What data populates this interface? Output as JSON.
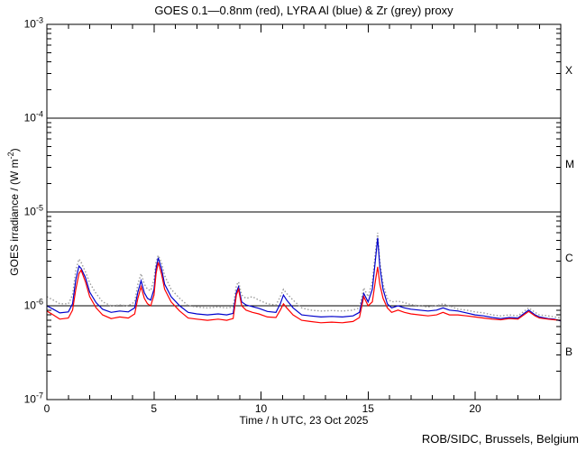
{
  "chart_data": {
    "type": "line",
    "title": "GOES 0.1—0.8nm (red), LYRA Al (blue) & Zr (grey) proxy",
    "xlabel": "Time / h UTC, 23 Oct 2025",
    "ylabel_parts": {
      "pre": "GOES irradiance / (W m",
      "exp": "-2",
      "post": ")"
    },
    "credit": "ROB/SIDC, Brussels, Belgium",
    "xlim": [
      0,
      24
    ],
    "yscale": "log",
    "ylim_exponents": [
      -7,
      -3
    ],
    "grid": false,
    "x_minor_step": 1,
    "x_major_ticks": [
      0,
      5,
      10,
      15,
      20
    ],
    "x_major_labels": [
      "0",
      "5",
      "10",
      "15",
      "20"
    ],
    "y_tick_exponents": [
      -3,
      -4,
      -5,
      -6,
      -7
    ],
    "y_tick_labels": [
      {
        "base": "10",
        "exp": "-3"
      },
      {
        "base": "10",
        "exp": "-4"
      },
      {
        "base": "10",
        "exp": "-5"
      },
      {
        "base": "10",
        "exp": "-6"
      },
      {
        "base": "10",
        "exp": "-7"
      }
    ],
    "flare_class_lines": [
      0.0001,
      1e-05,
      1e-06
    ],
    "flare_classes": [
      {
        "label": "X",
        "mid_value": 0.00032
      },
      {
        "label": "M",
        "mid_value": 3.2e-05
      },
      {
        "label": "C",
        "mid_value": 3.2e-06
      },
      {
        "label": "B",
        "mid_value": 3.2e-07
      }
    ],
    "x": [
      0,
      0.3,
      0.6,
      1.0,
      1.2,
      1.35,
      1.5,
      1.6,
      1.8,
      2.0,
      2.3,
      2.6,
      3.0,
      3.4,
      3.8,
      4.1,
      4.25,
      4.4,
      4.55,
      4.7,
      4.85,
      5.0,
      5.1,
      5.2,
      5.35,
      5.5,
      5.8,
      6.2,
      6.6,
      7.0,
      7.5,
      8.0,
      8.4,
      8.7,
      8.85,
      8.95,
      9.1,
      9.3,
      9.6,
      9.9,
      10.3,
      10.7,
      10.9,
      11.05,
      11.2,
      11.5,
      11.9,
      12.3,
      12.8,
      13.3,
      13.8,
      14.3,
      14.6,
      14.8,
      15.0,
      15.2,
      15.35,
      15.45,
      15.55,
      15.7,
      15.9,
      16.1,
      16.4,
      16.7,
      17.0,
      17.4,
      17.8,
      18.2,
      18.5,
      18.8,
      19.2,
      19.6,
      20.0,
      20.4,
      20.8,
      21.2,
      21.6,
      22.0,
      22.5,
      22.8,
      23.0,
      23.4,
      23.7,
      24.0
    ],
    "series": [
      {
        "id": "lyra-zr-proxy",
        "name": "LYRA Zr proxy",
        "color": "#9a9a9a",
        "line_style": "dotted",
        "values": [
          1.25e-06,
          1.15e-06,
          1.05e-06,
          1.05e-06,
          1.3e-06,
          2.4e-06,
          3.15e-06,
          2.9e-06,
          2.3e-06,
          1.75e-06,
          1.35e-06,
          1.1e-06,
          1e-06,
          1.02e-06,
          1e-06,
          1.1e-06,
          1.7e-06,
          2.2e-06,
          1.7e-06,
          1.5e-06,
          1.45e-06,
          1.9e-06,
          2.9e-06,
          3.45e-06,
          2.9e-06,
          2.1e-06,
          1.5e-06,
          1.2e-06,
          1e-06,
          9.7e-07,
          9.5e-07,
          9.7e-07,
          9.5e-07,
          9.7e-07,
          1.65e-06,
          1.8e-06,
          1.3e-06,
          1.2e-06,
          1.25e-06,
          1.15e-06,
          1.05e-06,
          1.02e-06,
          1.25e-06,
          1.5e-06,
          1.35e-06,
          1.15e-06,
          9.5e-07,
          9e-07,
          8.8e-07,
          8.9e-07,
          8.8e-07,
          9e-07,
          9.5e-07,
          1.55e-06,
          1.25e-06,
          1.8e-06,
          3.9e-06,
          6e-06,
          3e-06,
          1.7e-06,
          1.2e-06,
          1.1e-06,
          1.12e-06,
          1.08e-06,
          1.03e-06,
          1e-06,
          9.7e-07,
          1e-06,
          1.05e-06,
          1e-06,
          9.2e-07,
          9e-07,
          8.6e-07,
          8.4e-07,
          8e-07,
          7.8e-07,
          8e-07,
          7.8e-07,
          9.5e-07,
          8.5e-07,
          8e-07,
          7.8e-07,
          7.6e-07,
          7.4e-07
        ]
      },
      {
        "id": "lyra-al-proxy",
        "name": "LYRA Al proxy",
        "color": "#0000cc",
        "line_style": "solid",
        "values": [
          1e-06,
          9.2e-07,
          8.4e-07,
          8.6e-07,
          1.05e-06,
          1.9e-06,
          2.65e-06,
          2.5e-06,
          2e-06,
          1.4e-06,
          1.08e-06,
          9.2e-07,
          8.5e-07,
          8.8e-07,
          8.6e-07,
          9.5e-07,
          1.4e-06,
          1.85e-06,
          1.38e-06,
          1.2e-06,
          1.15e-06,
          1.5e-06,
          2.5e-06,
          3.25e-06,
          2.5e-06,
          1.7e-06,
          1.25e-06,
          1e-06,
          8.5e-07,
          8.2e-07,
          8e-07,
          8.2e-07,
          8e-07,
          8.3e-07,
          1.4e-06,
          1.6e-06,
          1.1e-06,
          1.02e-06,
          9.8e-07,
          9.4e-07,
          8.7e-07,
          8.5e-07,
          1.05e-06,
          1.3e-06,
          1.15e-06,
          9.5e-07,
          8e-07,
          7.8e-07,
          7.6e-07,
          7.7e-07,
          7.6e-07,
          7.8e-07,
          8.5e-07,
          1.35e-06,
          1.1e-06,
          1.5e-06,
          3.2e-06,
          5.3e-06,
          2.6e-06,
          1.5e-06,
          1.05e-06,
          9.5e-07,
          1e-06,
          9.5e-07,
          9.2e-07,
          9e-07,
          8.8e-07,
          9e-07,
          9.5e-07,
          9e-07,
          8.8e-07,
          8.4e-07,
          8e-07,
          7.8e-07,
          7.5e-07,
          7.3e-07,
          7.5e-07,
          7.4e-07,
          9e-07,
          8e-07,
          7.6e-07,
          7.3e-07,
          7.2e-07,
          6.9e-07
        ]
      },
      {
        "id": "goes-xray",
        "name": "GOES 0.1-0.8nm",
        "color": "#ff0000",
        "line_style": "solid",
        "values": [
          8.8e-07,
          8e-07,
          7.2e-07,
          7.4e-07,
          9e-07,
          1.5e-06,
          2.2e-06,
          2.4e-06,
          1.8e-06,
          1.25e-06,
          9.5e-07,
          8e-07,
          7.3e-07,
          7.6e-07,
          7.4e-07,
          8.2e-07,
          1.2e-06,
          1.6e-06,
          1.2e-06,
          1.05e-06,
          1e-06,
          1.3e-06,
          2.2e-06,
          2.9e-06,
          2.2e-06,
          1.5e-06,
          1.1e-06,
          8.8e-07,
          7.4e-07,
          7.2e-07,
          7e-07,
          7.2e-07,
          7e-07,
          7.3e-07,
          1.3e-06,
          1.5e-06,
          1e-06,
          9e-07,
          8.5e-07,
          8.2e-07,
          7.6e-07,
          7.5e-07,
          9e-07,
          1.05e-06,
          9.5e-07,
          8e-07,
          7e-07,
          6.8e-07,
          6.6e-07,
          6.7e-07,
          6.6e-07,
          6.8e-07,
          7.5e-07,
          1.25e-06,
          1e-06,
          1.1e-06,
          1.9e-06,
          2.6e-06,
          1.7e-06,
          1.2e-06,
          9.5e-07,
          8.5e-07,
          9e-07,
          8.5e-07,
          8.2e-07,
          8e-07,
          7.8e-07,
          8e-07,
          8.5e-07,
          8e-07,
          8e-07,
          7.8e-07,
          7.6e-07,
          7.4e-07,
          7.2e-07,
          7.1e-07,
          7.3e-07,
          7.2e-07,
          8.7e-07,
          7.8e-07,
          7.4e-07,
          7.2e-07,
          7.1e-07,
          7e-07
        ]
      }
    ]
  }
}
